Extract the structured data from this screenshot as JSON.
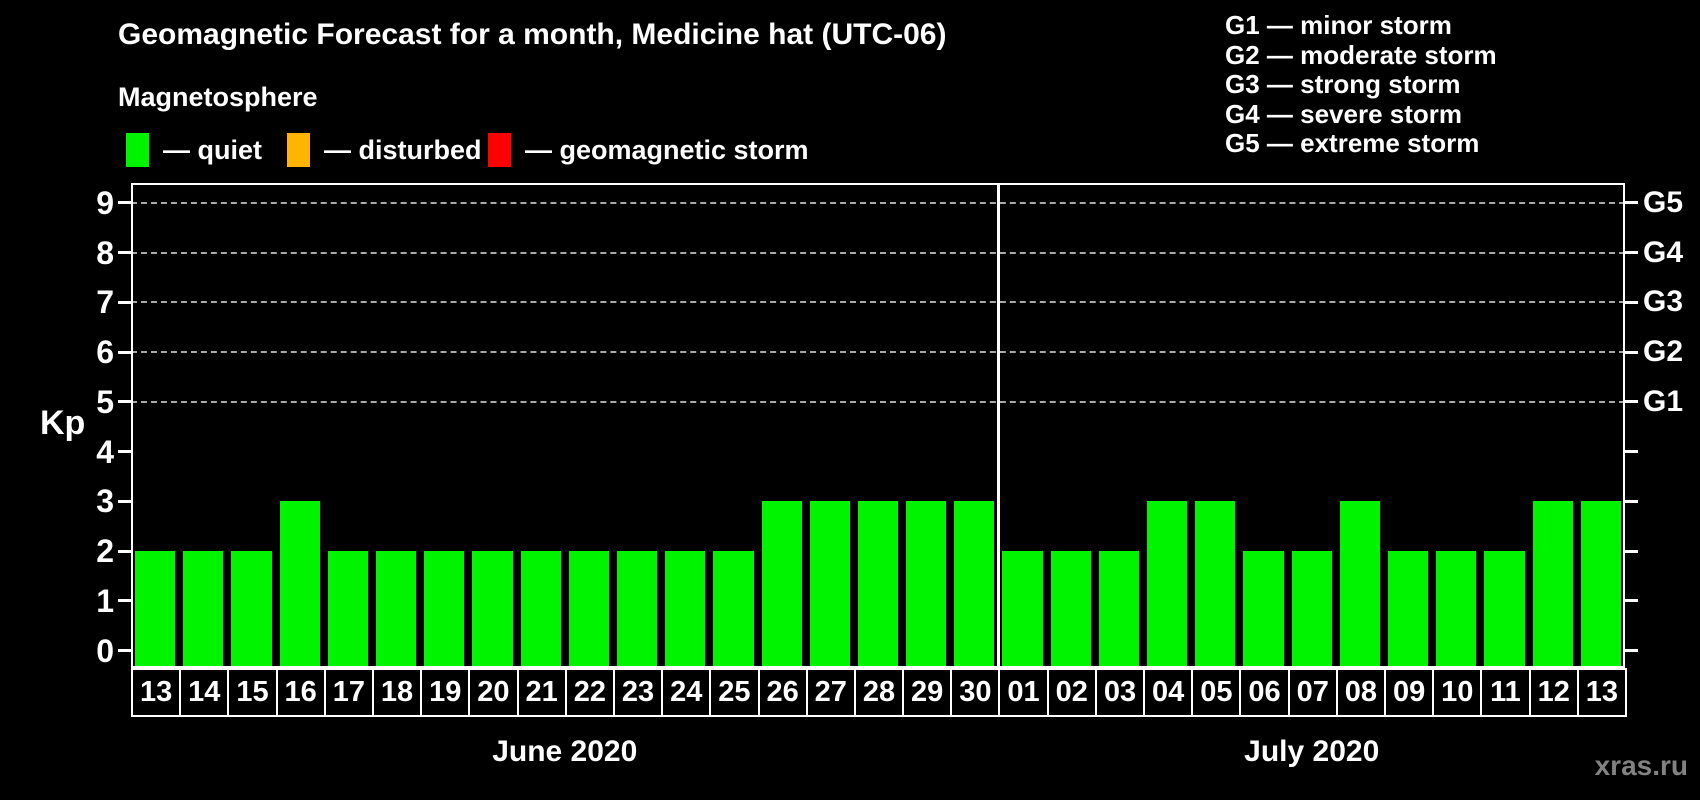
{
  "title": "Geomagnetic Forecast for a month, Medicine hat (UTC-06)",
  "legend": {
    "title": "Magnetosphere",
    "items": [
      {
        "label": "— quiet",
        "color_key": "quiet"
      },
      {
        "label": "— disturbed",
        "color_key": "disturbed"
      },
      {
        "label": "— geomagnetic storm",
        "color_key": "storm"
      }
    ]
  },
  "storm_scale": [
    "G1 — minor storm",
    "G2 — moderate storm",
    "G3 — strong storm",
    "G4 — severe storm",
    "G5 — extreme storm"
  ],
  "watermark": "xras.ru",
  "colors": {
    "quiet": "#00f400",
    "disturbed": "#ffb400",
    "storm": "#ff0000",
    "axis": "#ffffff",
    "grid": "#a9a9a9",
    "background": "#000000",
    "watermark": "#828282"
  },
  "chart_data": {
    "type": "bar",
    "title": "Geomagnetic Forecast for a month, Medicine hat (UTC-06)",
    "ylabel": "Kp",
    "ylim": [
      0,
      9
    ],
    "yticks": [
      0,
      1,
      2,
      3,
      4,
      5,
      6,
      7,
      8,
      9
    ],
    "right_axis": [
      {
        "kp": 5,
        "label": "G1"
      },
      {
        "kp": 6,
        "label": "G2"
      },
      {
        "kp": 7,
        "label": "G3"
      },
      {
        "kp": 8,
        "label": "G4"
      },
      {
        "kp": 9,
        "label": "G5"
      }
    ],
    "grid_levels": [
      5,
      6,
      7,
      8,
      9
    ],
    "grid": true,
    "legend_position": "top",
    "months": [
      {
        "label": "June 2020",
        "days": [
          "13",
          "14",
          "15",
          "16",
          "17",
          "18",
          "19",
          "20",
          "21",
          "22",
          "23",
          "24",
          "25",
          "26",
          "27",
          "28",
          "29",
          "30"
        ],
        "values": [
          2,
          2,
          2,
          3,
          2,
          2,
          2,
          2,
          2,
          2,
          2,
          2,
          2,
          3,
          3,
          3,
          3,
          3
        ]
      },
      {
        "label": "July 2020",
        "days": [
          "01",
          "02",
          "03",
          "04",
          "05",
          "06",
          "07",
          "08",
          "09",
          "10",
          "11",
          "12",
          "13"
        ],
        "values": [
          2,
          2,
          2,
          3,
          3,
          2,
          2,
          3,
          2,
          2,
          2,
          3,
          3
        ]
      }
    ]
  }
}
